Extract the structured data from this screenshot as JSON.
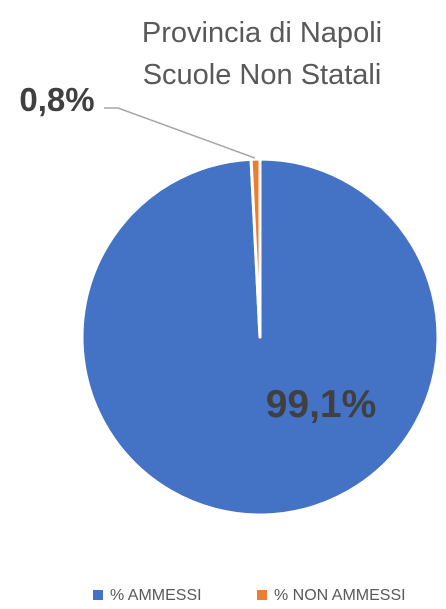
{
  "chart_data": {
    "type": "pie",
    "title": [
      "Provincia di Napoli",
      "Scuole Non Statali"
    ],
    "categories": [
      "% AMMESSI",
      "% NON AMMESSI"
    ],
    "values": [
      99.1,
      0.8
    ],
    "data_labels": [
      "99,1%",
      "0,8%"
    ],
    "colors": [
      "#4472C4",
      "#ED7D31"
    ],
    "legend_position": "bottom"
  }
}
